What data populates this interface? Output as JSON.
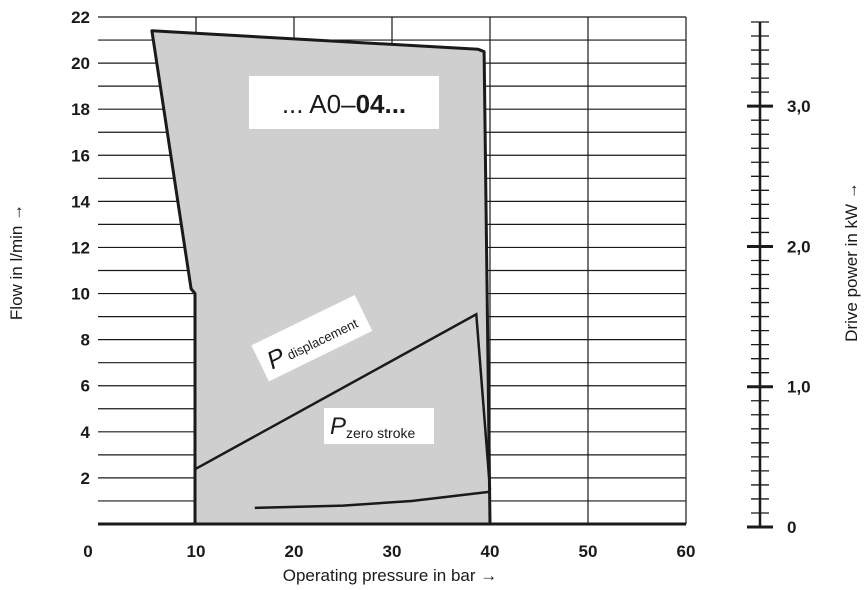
{
  "chart_data": {
    "type": "area",
    "xlabel": "Operating pressure in bar →",
    "ylabel": "Flow in l/min →",
    "y2label": "Drive power in kW →",
    "xlim": [
      0,
      60
    ],
    "ylim": [
      0,
      22
    ],
    "y2lim": [
      0,
      3.6
    ],
    "x_ticks": [
      "0",
      "10",
      "20",
      "30",
      "40",
      "50",
      "60"
    ],
    "y_ticks": [
      "2",
      "4",
      "6",
      "8",
      "10",
      "12",
      "14",
      "16",
      "18",
      "20",
      "22"
    ],
    "y2_ticks": [
      "0",
      "1,0",
      "2,0",
      "3,0"
    ],
    "annotations": {
      "model_prefix": "... A0–",
      "model_bold": "04...",
      "p_displacement_main": "P",
      "p_displacement_sub": " displacement",
      "p_zero_main": "P",
      "p_zero_sub": "zero stroke"
    },
    "flow_region": {
      "x": [
        5.5,
        9.5,
        9.9,
        9.9,
        40.0,
        39.4,
        38.8,
        5.5
      ],
      "y": [
        21.4,
        10.2,
        10.0,
        0,
        0,
        20.5,
        20.6,
        21.4
      ]
    },
    "series": [
      {
        "x": [
          10.0,
          38.6,
          40.0
        ],
        "y": [
          2.4,
          9.1,
          1.5
        ]
      },
      {
        "x": [
          16.0,
          25.0,
          32.0,
          40.0
        ],
        "y": [
          0.7,
          0.8,
          1.0,
          1.4
        ]
      }
    ],
    "grid": true
  }
}
